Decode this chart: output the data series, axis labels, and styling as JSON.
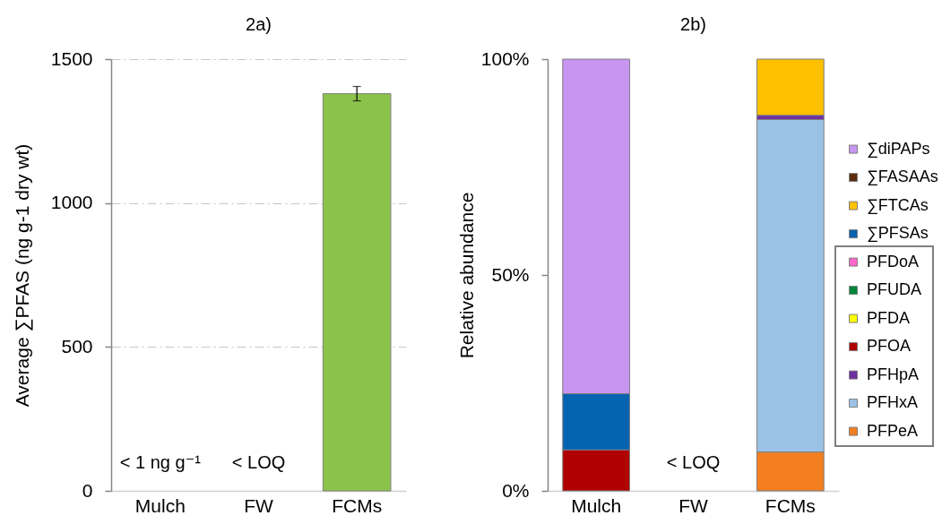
{
  "chart_data": [
    {
      "type": "bar",
      "title": "2a)",
      "ylabel": "Average ∑PFAS (ng g-1 dry wt)",
      "categories": [
        "Mulch",
        "FW",
        "FCMs"
      ],
      "values": [
        null,
        null,
        1380
      ],
      "errors": [
        null,
        null,
        25
      ],
      "color": "#8bc34a",
      "ylim": [
        0,
        1500
      ],
      "yticks": [
        0,
        500,
        1000,
        1500
      ],
      "grid": "y",
      "annotations": [
        "< 1 ng g⁻¹",
        "< LOQ"
      ]
    },
    {
      "type": "bar",
      "title": "2b)",
      "ylabel": "Relative abundance",
      "categories": [
        "Mulch",
        "FW",
        "FCMs"
      ],
      "stacked": true,
      "series": [
        {
          "name": "PFPeA",
          "color": "#f47f20",
          "values": [
            null,
            null,
            9
          ]
        },
        {
          "name": "PFHxA",
          "color": "#9bc2e6",
          "values": [
            null,
            null,
            77
          ]
        },
        {
          "name": "PFHpA",
          "color": "#7030a0",
          "values": [
            null,
            null,
            1
          ]
        },
        {
          "name": "PFOA",
          "color": "#b00000",
          "values": [
            9.5,
            null,
            null
          ]
        },
        {
          "name": "PFDA",
          "color": "#ffff00",
          "values": [
            null,
            null,
            null
          ]
        },
        {
          "name": "PFUDA",
          "color": "#00883a",
          "values": [
            null,
            null,
            null
          ]
        },
        {
          "name": "PFDoA",
          "color": "#ff66cc",
          "values": [
            null,
            null,
            null
          ]
        },
        {
          "name": "∑PFSAs",
          "color": "#0563b0",
          "values": [
            13,
            null,
            null
          ]
        },
        {
          "name": "∑FTCAs",
          "color": "#ffc000",
          "values": [
            null,
            null,
            13
          ]
        },
        {
          "name": "∑FASAAs",
          "color": "#5c2c0c",
          "values": [
            null,
            null,
            null
          ]
        },
        {
          "name": "∑diPAPs",
          "color": "#c896f0",
          "values": [
            77.5,
            null,
            null
          ]
        }
      ],
      "ylim": [
        0,
        100
      ],
      "yticks": [
        {
          "value": 0,
          "label": "0%"
        },
        {
          "value": 50,
          "label": "50%"
        },
        {
          "value": 100,
          "label": "100%"
        }
      ],
      "legend": "right",
      "annotations": [
        "< LOQ"
      ]
    }
  ]
}
